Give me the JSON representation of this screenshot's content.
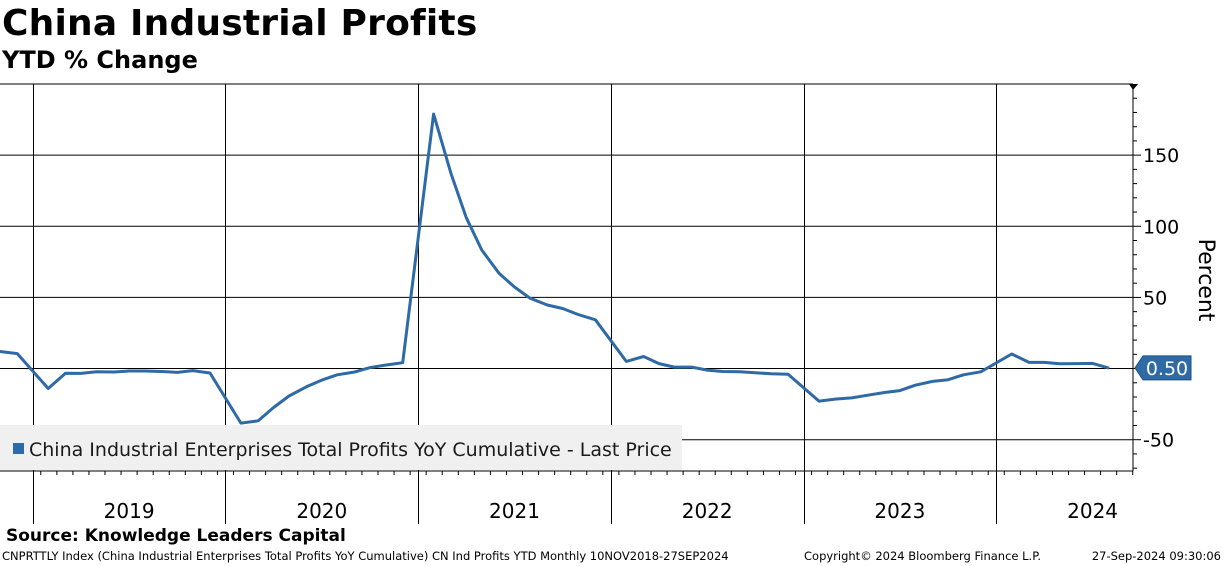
{
  "header": {
    "title": "China Industrial Profits",
    "subtitle": "YTD % Change"
  },
  "source": "Source: Knowledge Leaders Capital",
  "footer": {
    "left": "CNPRTTLY Index (China Industrial Enterprises Total Profits YoY Cumulative) CN Ind Profits YTD  Monthly 10NOV2018-27SEP2024",
    "middle": "Copyright© 2024 Bloomberg Finance L.P.",
    "right": "27-Sep-2024 09:30:06"
  },
  "colors": {
    "line": "#2e6aa5",
    "grid": "#000000",
    "legend_bg": "#f0f0f0",
    "badge": "#2e6aa5"
  },
  "chart_data": {
    "type": "line",
    "title": "China Industrial Profits",
    "subtitle": "YTD % Change",
    "ylabel": "Percent",
    "xlabel": "",
    "ylim": [
      -72,
      200
    ],
    "y_ticks": [
      -50,
      50,
      100,
      150
    ],
    "y_tick_labels": [
      "-50",
      "50",
      "100",
      "150"
    ],
    "grid": true,
    "x_categories": [
      "2019",
      "2020",
      "2021",
      "2022",
      "2023",
      "2024"
    ],
    "last_value_label": "0.50",
    "series": [
      {
        "name": "China Industrial Enterprises Total Profits YoY Cumulative - Last Price",
        "legend_label": "China Industrial Enterprises Total Profits YoY Cumulative - Last Price",
        "points": [
          {
            "t": 2018.83,
            "v": 12.0
          },
          {
            "t": 2018.92,
            "v": 10.5
          },
          {
            "t": 2019.08,
            "v": -14.0
          },
          {
            "t": 2019.17,
            "v": -3.3
          },
          {
            "t": 2019.25,
            "v": -3.4
          },
          {
            "t": 2019.33,
            "v": -2.3
          },
          {
            "t": 2019.42,
            "v": -2.4
          },
          {
            "t": 2019.5,
            "v": -1.7
          },
          {
            "t": 2019.58,
            "v": -1.7
          },
          {
            "t": 2019.67,
            "v": -2.1
          },
          {
            "t": 2019.75,
            "v": -2.7
          },
          {
            "t": 2019.83,
            "v": -1.4
          },
          {
            "t": 2019.92,
            "v": -3.1
          },
          {
            "t": 2020.08,
            "v": -38.3
          },
          {
            "t": 2020.17,
            "v": -36.7
          },
          {
            "t": 2020.25,
            "v": -27.4
          },
          {
            "t": 2020.33,
            "v": -19.3
          },
          {
            "t": 2020.42,
            "v": -12.8
          },
          {
            "t": 2020.5,
            "v": -8.1
          },
          {
            "t": 2020.58,
            "v": -4.4
          },
          {
            "t": 2020.67,
            "v": -2.4
          },
          {
            "t": 2020.75,
            "v": 0.7
          },
          {
            "t": 2020.83,
            "v": 2.4
          },
          {
            "t": 2020.92,
            "v": 4.1
          },
          {
            "t": 2021.08,
            "v": 178.9
          },
          {
            "t": 2021.17,
            "v": 137.3
          },
          {
            "t": 2021.25,
            "v": 106.0
          },
          {
            "t": 2021.33,
            "v": 83.4
          },
          {
            "t": 2021.42,
            "v": 66.9
          },
          {
            "t": 2021.5,
            "v": 57.3
          },
          {
            "t": 2021.58,
            "v": 49.5
          },
          {
            "t": 2021.67,
            "v": 44.7
          },
          {
            "t": 2021.75,
            "v": 42.2
          },
          {
            "t": 2021.83,
            "v": 38.0
          },
          {
            "t": 2021.92,
            "v": 34.3
          },
          {
            "t": 2022.08,
            "v": 5.0
          },
          {
            "t": 2022.17,
            "v": 8.5
          },
          {
            "t": 2022.25,
            "v": 3.5
          },
          {
            "t": 2022.33,
            "v": 1.0
          },
          {
            "t": 2022.42,
            "v": 1.0
          },
          {
            "t": 2022.5,
            "v": -1.1
          },
          {
            "t": 2022.58,
            "v": -2.1
          },
          {
            "t": 2022.67,
            "v": -2.3
          },
          {
            "t": 2022.75,
            "v": -3.0
          },
          {
            "t": 2022.83,
            "v": -3.6
          },
          {
            "t": 2022.92,
            "v": -4.0
          },
          {
            "t": 2023.08,
            "v": -22.9
          },
          {
            "t": 2023.17,
            "v": -21.4
          },
          {
            "t": 2023.25,
            "v": -20.6
          },
          {
            "t": 2023.33,
            "v": -18.8
          },
          {
            "t": 2023.42,
            "v": -16.8
          },
          {
            "t": 2023.5,
            "v": -15.5
          },
          {
            "t": 2023.58,
            "v": -11.7
          },
          {
            "t": 2023.67,
            "v": -9.0
          },
          {
            "t": 2023.75,
            "v": -7.8
          },
          {
            "t": 2023.83,
            "v": -4.4
          },
          {
            "t": 2023.92,
            "v": -2.3
          },
          {
            "t": 2024.08,
            "v": 10.2
          },
          {
            "t": 2024.17,
            "v": 4.3
          },
          {
            "t": 2024.25,
            "v": 4.3
          },
          {
            "t": 2024.33,
            "v": 3.4
          },
          {
            "t": 2024.42,
            "v": 3.5
          },
          {
            "t": 2024.5,
            "v": 3.6
          },
          {
            "t": 2024.58,
            "v": 0.5
          }
        ]
      }
    ]
  }
}
